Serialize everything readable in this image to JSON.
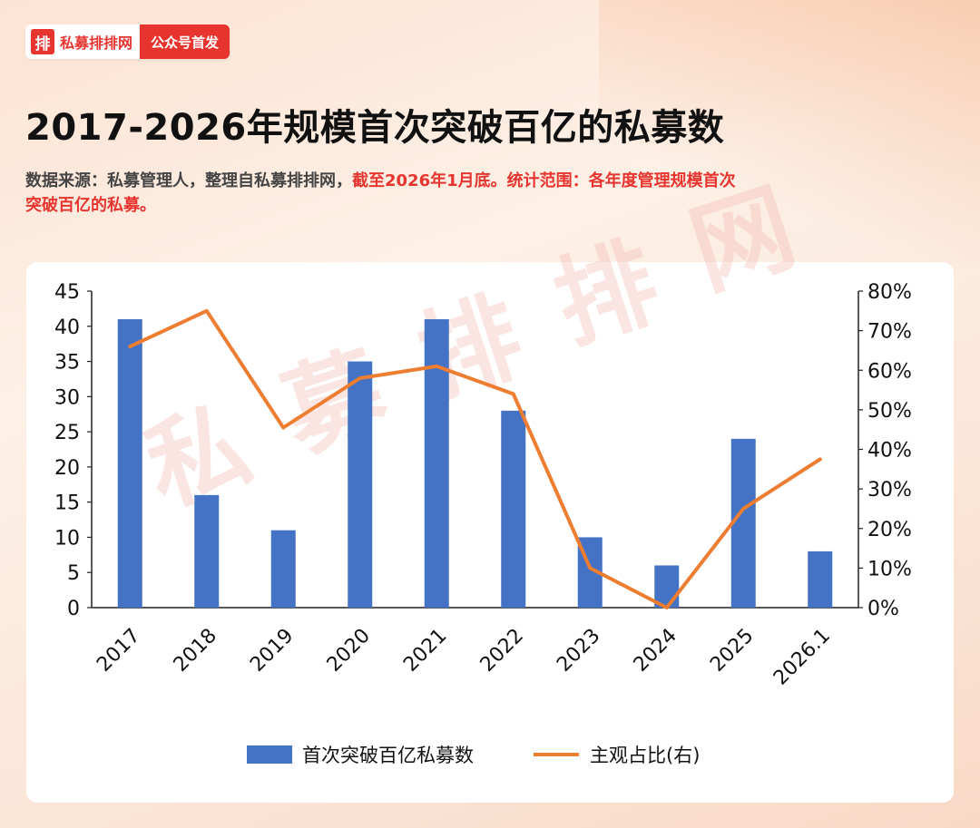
{
  "header": {
    "logo_char": "排",
    "brand_name": "私募排排网",
    "tag": "公众号首发"
  },
  "title": "2017-2026年规模首次突破百亿的私募数",
  "source": {
    "plain": "数据来源：私募管理人，整理自私募排排网，",
    "highlight": "截至2026年1月底。统计范围：各年度管理规模首次突破百亿的私募。"
  },
  "watermark": "私募排排网",
  "colors": {
    "bar": "#4472c4",
    "line": "#ed7d31",
    "accent": "#e8342f"
  },
  "chart_data": {
    "type": "bar",
    "categories": [
      "2017",
      "2018",
      "2019",
      "2020",
      "2021",
      "2022",
      "2023",
      "2024",
      "2025",
      "2026.1"
    ],
    "series": [
      {
        "name": "首次突破百亿私募数",
        "type": "bar",
        "axis": "left",
        "values": [
          41,
          16,
          11,
          35,
          41,
          28,
          10,
          6,
          24,
          8
        ]
      },
      {
        "name": "主观占比(右)",
        "type": "line",
        "axis": "right",
        "values": [
          66,
          75,
          45.5,
          58,
          61,
          54,
          10,
          0,
          25,
          37.5
        ]
      }
    ],
    "ylim": [
      0,
      45
    ],
    "yticks": [
      "0",
      "5",
      "10",
      "15",
      "20",
      "25",
      "30",
      "35",
      "40",
      "45"
    ],
    "y2lim": [
      0,
      80
    ],
    "y2ticks": [
      "0%",
      "10%",
      "20%",
      "30%",
      "40%",
      "50%",
      "60%",
      "70%",
      "80%"
    ],
    "legend": "bottom",
    "grid": false
  }
}
